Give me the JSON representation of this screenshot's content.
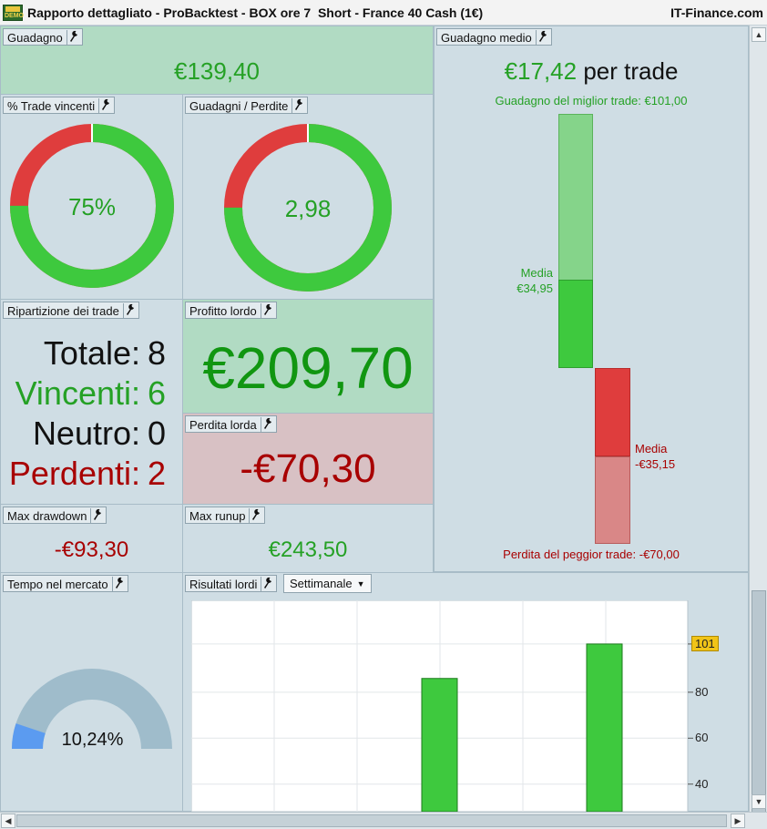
{
  "window": {
    "title": "Rapporto dettagliato - ProBacktest - BOX ore 7  Short - France 40 Cash (1€)",
    "brand": "IT-Finance.com",
    "demo_badge": "DEMO"
  },
  "guadagno": {
    "label": "Guadagno",
    "value": "€139,40"
  },
  "guadagno_medio": {
    "label": "Guadagno medio",
    "value": "€17,42",
    "suffix": "per trade",
    "best_trade": "Guadagno del miglior trade: €101,00",
    "worst_trade": "Perdita del peggior trade: -€70,00",
    "media_win_label": "Media",
    "media_win_value": "€34,95",
    "media_loss_label": "Media",
    "media_loss_value": "-€35,15",
    "best_value": 101.0,
    "worst_value": -70.0,
    "avg_win": 34.95,
    "avg_loss": -35.15
  },
  "trade_vincenti": {
    "label": "% Trade vincenti",
    "value": "75%",
    "fraction": 0.75
  },
  "guadagni_perdite": {
    "label": "Guadagni / Perdite",
    "value": "2,98",
    "win_fraction": 0.75
  },
  "ripartizione": {
    "label": "Ripartizione dei trade",
    "rows": [
      {
        "label": "Totale:",
        "value": "8"
      },
      {
        "label": "Vincenti:",
        "value": "6"
      },
      {
        "label": "Neutro:",
        "value": "0"
      },
      {
        "label": "Perdenti:",
        "value": "2"
      }
    ]
  },
  "profitto_lordo": {
    "label": "Profitto lordo",
    "value": "€209,70"
  },
  "perdita_lorda": {
    "label": "Perdita lorda",
    "value": "-€70,30"
  },
  "max_drawdown": {
    "label": "Max drawdown",
    "value": "-€93,30"
  },
  "max_runup": {
    "label": "Max runup",
    "value": "€243,50"
  },
  "tempo_mercato": {
    "label": "Tempo nel mercato",
    "value": "10,24%",
    "fraction": 0.1024
  },
  "risultati_lordi": {
    "label": "Risultati lordi",
    "period": "Settimanale",
    "badge": "101",
    "ticks": [
      "80",
      "60",
      "40"
    ]
  },
  "colors": {
    "green": "#3ec93e",
    "red": "#df3d3d",
    "panel_green": "#b1dbc3",
    "panel_red": "#d8c1c4",
    "panel_blue": "#cfdde4"
  },
  "chart_data": {
    "type": "bar",
    "title": "",
    "xlabel": "",
    "ylabel": "",
    "values": [
      86,
      101
    ],
    "ylim": [
      28,
      120
    ],
    "yticks": [
      40,
      60,
      80,
      101
    ]
  }
}
